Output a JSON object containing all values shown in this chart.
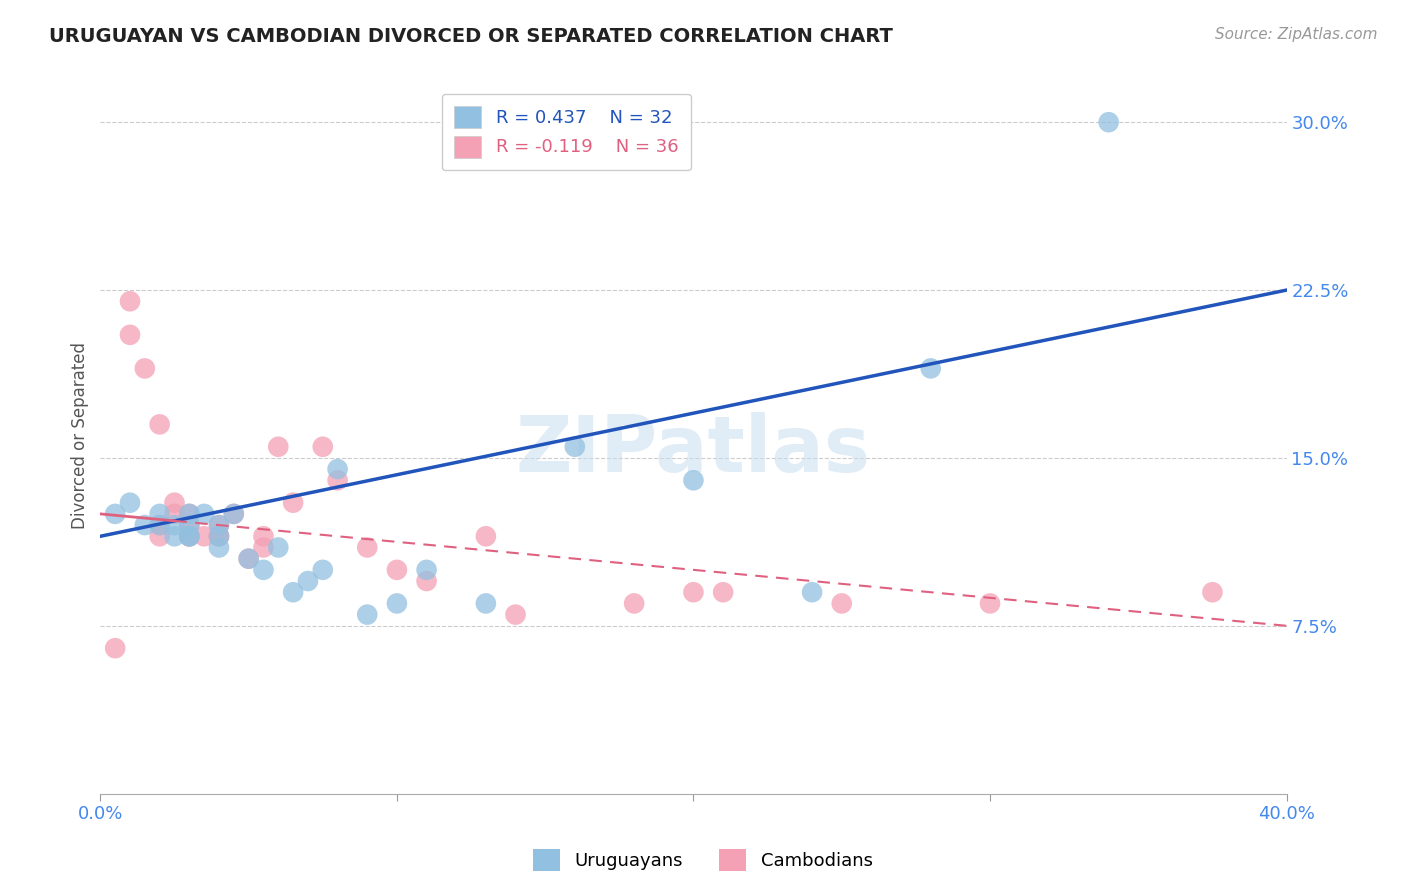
{
  "title": "URUGUAYAN VS CAMBODIAN DIVORCED OR SEPARATED CORRELATION CHART",
  "source": "Source: ZipAtlas.com",
  "ylabel": "Divorced or Separated",
  "xlim": [
    0.0,
    0.4
  ],
  "ylim": [
    0.0,
    0.32
  ],
  "ytick_vals": [
    0.075,
    0.15,
    0.225,
    0.3
  ],
  "ytick_labels": [
    "7.5%",
    "15.0%",
    "22.5%",
    "30.0%"
  ],
  "xtick_vals": [
    0.0,
    0.1,
    0.2,
    0.3,
    0.4
  ],
  "xtick_labels": [
    "0.0%",
    "",
    "",
    "",
    "40.0%"
  ],
  "background_color": "#ffffff",
  "grid_color": "#cccccc",
  "uruguayan_color": "#92C0E0",
  "cambodian_color": "#F4A0B5",
  "uruguayan_line_color": "#2255BB",
  "cambodian_line_color": "#E06080",
  "R_uruguayan": 0.437,
  "N_uruguayan": 32,
  "R_cambodian": -0.119,
  "N_cambodian": 36,
  "uruguayan_x": [
    0.005,
    0.01,
    0.015,
    0.02,
    0.02,
    0.025,
    0.025,
    0.03,
    0.03,
    0.03,
    0.03,
    0.035,
    0.04,
    0.04,
    0.04,
    0.045,
    0.05,
    0.055,
    0.06,
    0.065,
    0.07,
    0.075,
    0.08,
    0.09,
    0.1,
    0.11,
    0.13,
    0.16,
    0.2,
    0.24,
    0.28,
    0.34
  ],
  "uruguayan_y": [
    0.125,
    0.13,
    0.12,
    0.12,
    0.125,
    0.115,
    0.12,
    0.115,
    0.125,
    0.12,
    0.115,
    0.125,
    0.11,
    0.115,
    0.12,
    0.125,
    0.105,
    0.1,
    0.11,
    0.09,
    0.095,
    0.1,
    0.145,
    0.08,
    0.085,
    0.1,
    0.085,
    0.155,
    0.14,
    0.09,
    0.19,
    0.3
  ],
  "cambodian_x": [
    0.005,
    0.01,
    0.01,
    0.015,
    0.02,
    0.02,
    0.02,
    0.025,
    0.025,
    0.03,
    0.03,
    0.03,
    0.03,
    0.035,
    0.04,
    0.04,
    0.04,
    0.045,
    0.05,
    0.055,
    0.055,
    0.06,
    0.065,
    0.075,
    0.08,
    0.09,
    0.1,
    0.11,
    0.13,
    0.14,
    0.18,
    0.2,
    0.21,
    0.25,
    0.3,
    0.375
  ],
  "cambodian_y": [
    0.065,
    0.205,
    0.22,
    0.19,
    0.165,
    0.12,
    0.115,
    0.13,
    0.125,
    0.12,
    0.115,
    0.115,
    0.125,
    0.115,
    0.12,
    0.115,
    0.115,
    0.125,
    0.105,
    0.11,
    0.115,
    0.155,
    0.13,
    0.155,
    0.14,
    0.11,
    0.1,
    0.095,
    0.115,
    0.08,
    0.085,
    0.09,
    0.09,
    0.085,
    0.085,
    0.09
  ]
}
